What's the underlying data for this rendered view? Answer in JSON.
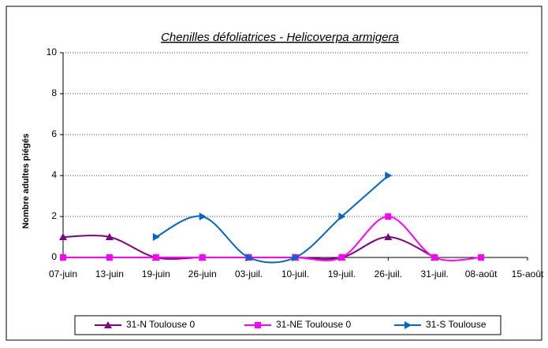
{
  "chart_data": {
    "type": "line",
    "title": "Chenilles défoliatrices - Helicoverpa armigera",
    "y_label": "Nombre adultes piégés",
    "categories": [
      "07-juin",
      "13-juin",
      "19-juin",
      "26-juin",
      "03-juil.",
      "10-juil.",
      "19-juil.",
      "26-juil.",
      "31-juil.",
      "08-août",
      "15-août"
    ],
    "series": [
      {
        "name": "31-N Toulouse 0",
        "color": "#800080",
        "marker": "triangle-up",
        "values": [
          1,
          1,
          0,
          0,
          0,
          0,
          0,
          1,
          0,
          null,
          null
        ]
      },
      {
        "name": "31-NE Toulouse 0",
        "color": "#ff00ff",
        "marker": "square",
        "values": [
          0,
          0,
          0,
          0,
          0,
          0,
          0,
          2,
          0,
          0,
          null
        ]
      },
      {
        "name": "31-S Toulouse",
        "color": "#0066cc",
        "marker": "triangle-right",
        "values": [
          null,
          null,
          1,
          2,
          0,
          0,
          2,
          4,
          null,
          null,
          null
        ]
      }
    ],
    "ylim": [
      0,
      10
    ],
    "yticks": [
      0,
      2,
      4,
      6,
      8,
      10
    ],
    "grid": true,
    "legend": "bottom"
  }
}
